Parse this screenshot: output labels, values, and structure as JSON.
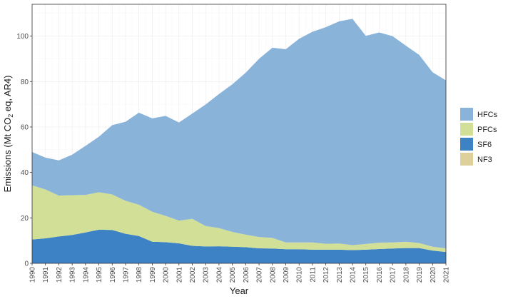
{
  "chart_data": {
    "type": "area",
    "stacked": true,
    "xlabel": "Year",
    "ylabel": "Emissions (Mt CO2 eq, AR4)",
    "ylabel_parts": {
      "before": "Emissions (Mt CO",
      "sub": "2",
      "after": " eq, AR4)"
    },
    "xlim": [
      1990,
      2021
    ],
    "ylim": [
      0,
      114
    ],
    "yticks": [
      0,
      20,
      40,
      60,
      80,
      100
    ],
    "x": [
      1990,
      1991,
      1992,
      1993,
      1994,
      1995,
      1996,
      1997,
      1998,
      1999,
      2000,
      2001,
      2002,
      2003,
      2004,
      2005,
      2006,
      2007,
      2008,
      2009,
      2010,
      2011,
      2012,
      2013,
      2014,
      2015,
      2016,
      2017,
      2018,
      2019,
      2020,
      2021
    ],
    "x_tick_labels": [
      "1990",
      "1991",
      "1992",
      "1993",
      "1994",
      "1995",
      "1996",
      "1997",
      "1998",
      "1999",
      "2000",
      "2001",
      "2002",
      "2003",
      "2004",
      "2005",
      "2006",
      "2007",
      "2008",
      "2009",
      "2010",
      "2011",
      "2012",
      "2013",
      "2014",
      "2015",
      "2016",
      "2017",
      "2018",
      "2019",
      "2020",
      "2021"
    ],
    "grid": true,
    "legend_position": "right",
    "stack_order": [
      "NF3",
      "SF6",
      "PFCs",
      "HFCs"
    ],
    "series": [
      {
        "name": "HFCs",
        "color": "#8ab3da",
        "values": [
          14.7,
          14.0,
          15.5,
          17.8,
          21.6,
          24.4,
          30.5,
          34.8,
          40.5,
          41.1,
          44.0,
          43.2,
          46.3,
          53.5,
          59.0,
          65.0,
          71.3,
          78.4,
          83.7,
          85.0,
          89.6,
          92.7,
          95.3,
          97.8,
          99.6,
          91.6,
          92.5,
          90.8,
          86.3,
          82.8,
          76.8,
          73.9
        ]
      },
      {
        "name": "PFCs",
        "color": "#d1df97",
        "values": [
          23.8,
          21.5,
          18.0,
          17.5,
          16.5,
          16.5,
          15.6,
          14.5,
          13.8,
          13.2,
          11.6,
          10.0,
          11.9,
          9.0,
          8.0,
          6.5,
          5.5,
          5.0,
          4.7,
          3.0,
          3.0,
          3.2,
          2.6,
          2.7,
          2.2,
          2.5,
          2.8,
          2.7,
          2.8,
          2.2,
          1.7,
          1.6
        ]
      },
      {
        "name": "SF6",
        "color": "#3d82c4",
        "values": [
          10.5,
          11.0,
          11.8,
          12.5,
          13.6,
          14.8,
          14.7,
          13.0,
          12.0,
          9.5,
          9.3,
          8.8,
          7.7,
          7.4,
          7.5,
          7.3,
          7.1,
          6.6,
          6.5,
          6.2,
          6.2,
          6.0,
          6.0,
          6.0,
          5.8,
          6.0,
          6.3,
          6.5,
          6.7,
          6.7,
          5.6,
          5.0
        ]
      },
      {
        "name": "NF3",
        "color": "#ded09b",
        "values": [
          0,
          0,
          0,
          0,
          0,
          0,
          0,
          0,
          0,
          0,
          0,
          0,
          0,
          0,
          0,
          0,
          0,
          0,
          0,
          0,
          0,
          0,
          0,
          0,
          0,
          0,
          0,
          0,
          0,
          0,
          0,
          0
        ]
      }
    ]
  }
}
